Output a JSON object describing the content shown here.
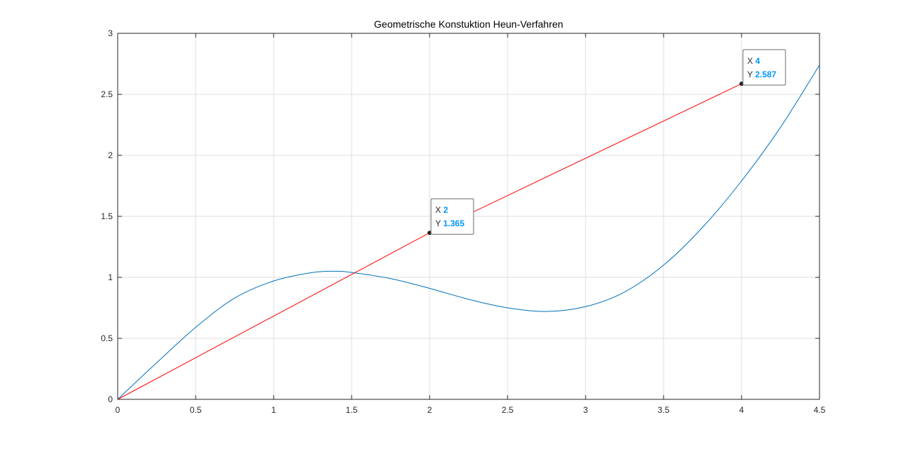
{
  "chart_data": {
    "type": "line",
    "title": "Geometrische Konstuktion Heun-Verfahren",
    "xlabel": "",
    "ylabel": "",
    "xlim": [
      0,
      4.5
    ],
    "ylim": [
      0,
      3
    ],
    "grid": true,
    "x_ticks": [
      0,
      0.5,
      1,
      1.5,
      2,
      2.5,
      3,
      3.5,
      4,
      4.5
    ],
    "x_tick_labels": [
      "0",
      "0.5",
      "1",
      "1.5",
      "2",
      "2.5",
      "3",
      "3.5",
      "4",
      "4.5"
    ],
    "y_ticks": [
      0,
      0.5,
      1,
      1.5,
      2,
      2.5,
      3
    ],
    "y_tick_labels": [
      "0",
      "0.5",
      "1",
      "1.5",
      "2",
      "2.5",
      "3"
    ],
    "series": [
      {
        "color": "#0072BD",
        "x": [
          0,
          0.25,
          0.5,
          0.75,
          1,
          1.25,
          1.4,
          1.5,
          1.75,
          2,
          2.25,
          2.5,
          2.75,
          3,
          3.25,
          3.5,
          3.75,
          4,
          4.25,
          4.5
        ],
        "y": [
          0,
          0.3,
          0.59,
          0.83,
          0.97,
          1.04,
          1.05,
          1.04,
          0.99,
          0.91,
          0.82,
          0.75,
          0.72,
          0.76,
          0.88,
          1.1,
          1.41,
          1.79,
          2.23,
          2.74
        ]
      },
      {
        "color": "#FF0000",
        "x": [
          0,
          2,
          4
        ],
        "y": [
          0,
          1.365,
          2.587
        ]
      }
    ],
    "datatips": [
      {
        "x_label": "X",
        "x_value": "2",
        "y_label": "Y",
        "y_value": "1.365",
        "x": 2,
        "y": 1.365
      },
      {
        "x_label": "X",
        "x_value": "4",
        "y_label": "Y",
        "y_value": "2.587",
        "x": 4,
        "y": 2.587
      }
    ],
    "colors": {
      "tip_value": "#0096FF",
      "grid": "#DFDFDF",
      "axis": "#262626"
    }
  }
}
